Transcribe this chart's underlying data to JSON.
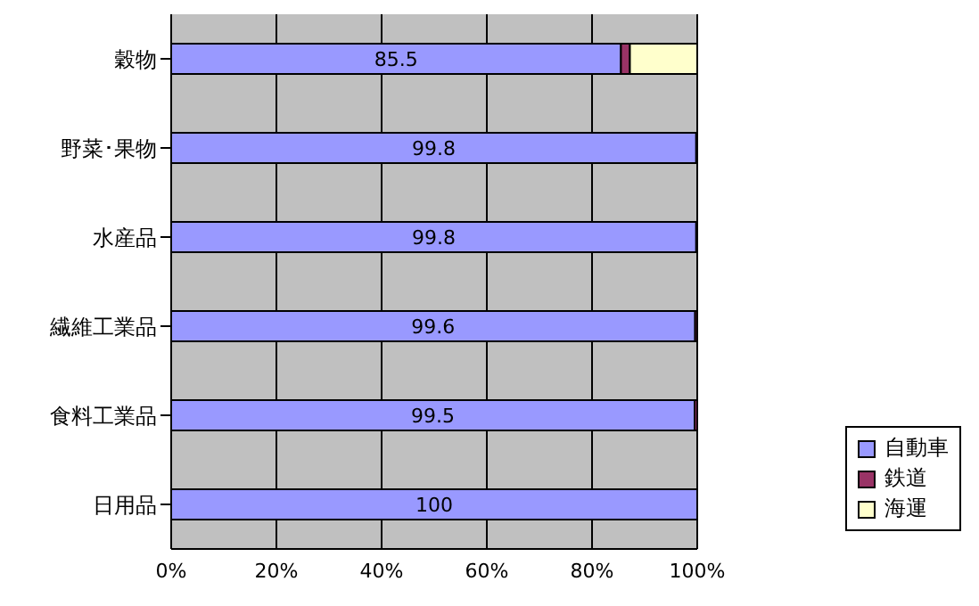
{
  "chart_data": {
    "type": "bar",
    "orientation": "horizontal",
    "stacked": true,
    "categories": [
      "穀物",
      "野菜･果物",
      "水産品",
      "繊維工業品",
      "食料工業品",
      "日用品"
    ],
    "series": [
      {
        "name": "自動車",
        "color": "#9999ff",
        "values": [
          85.5,
          99.8,
          99.8,
          99.6,
          99.5,
          100
        ],
        "value_labels": [
          "85.5",
          "99.8",
          "99.8",
          "99.6",
          "99.5",
          "100"
        ]
      },
      {
        "name": "鉄道",
        "color": "#993366",
        "values": [
          1.7,
          0.2,
          0.2,
          0.4,
          0.5,
          0
        ]
      },
      {
        "name": "海運",
        "color": "#ffffcc",
        "values": [
          12.8,
          0,
          0,
          0,
          0,
          0
        ]
      }
    ],
    "xlim": [
      0,
      100
    ],
    "xticks": [
      {
        "value": 0,
        "label": "0%"
      },
      {
        "value": 20,
        "label": "20%"
      },
      {
        "value": 40,
        "label": "40%"
      },
      {
        "value": 60,
        "label": "60%"
      },
      {
        "value": 80,
        "label": "80%"
      },
      {
        "value": 100,
        "label": "100%"
      }
    ],
    "grid": "x",
    "legend": "right"
  }
}
